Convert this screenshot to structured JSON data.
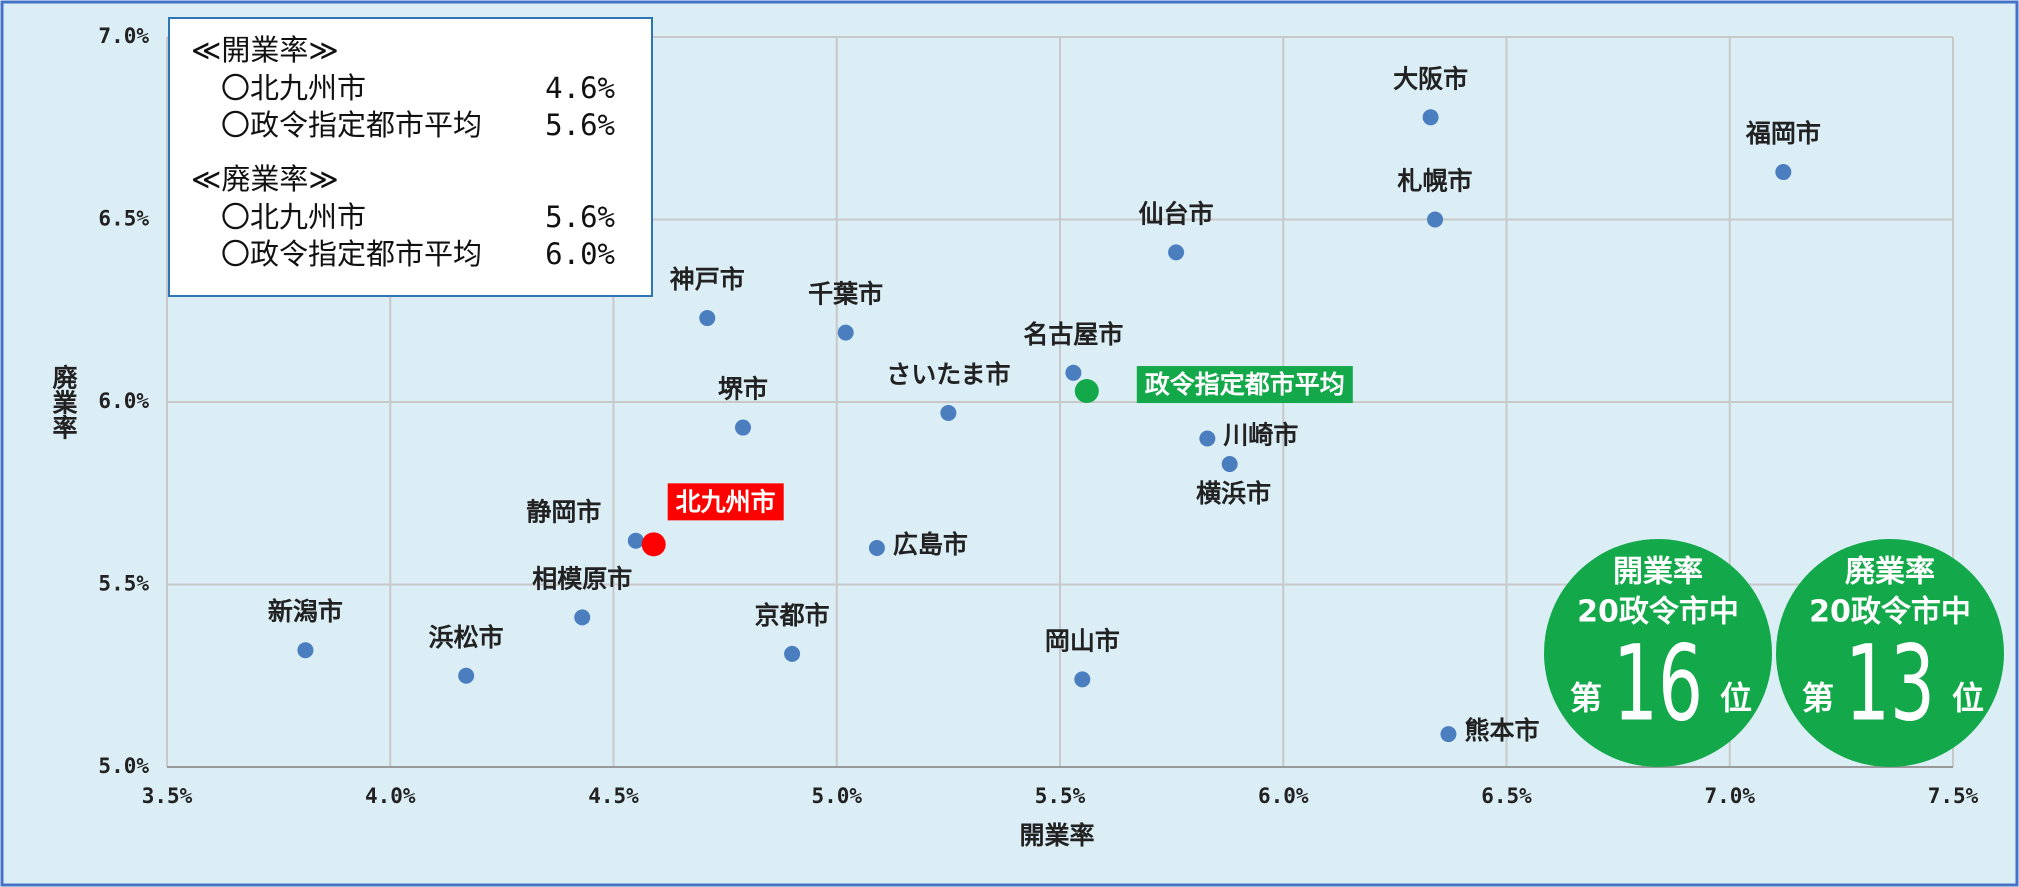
{
  "chart_data": {
    "type": "scatter",
    "x_label": "開業率",
    "y_label": "廃業率",
    "xlim": [
      3.5,
      7.5
    ],
    "ylim": [
      5.0,
      7.0
    ],
    "xticks": [
      {
        "value": 3.5,
        "label": "3.5%"
      },
      {
        "value": 4.0,
        "label": "4.0%"
      },
      {
        "value": 4.5,
        "label": "4.5%"
      },
      {
        "value": 5.0,
        "label": "5.0%"
      },
      {
        "value": 5.5,
        "label": "5.5%"
      },
      {
        "value": 6.0,
        "label": "6.0%"
      },
      {
        "value": 6.5,
        "label": "6.5%"
      },
      {
        "value": 7.0,
        "label": "7.0%"
      },
      {
        "value": 7.5,
        "label": "7.5%"
      }
    ],
    "yticks": [
      {
        "value": 5.0,
        "label": "5.0%"
      },
      {
        "value": 5.5,
        "label": "5.5%"
      },
      {
        "value": 6.0,
        "label": "6.0%"
      },
      {
        "value": 6.5,
        "label": "6.5%"
      },
      {
        "value": 7.0,
        "label": "7.0%"
      }
    ],
    "grid": true,
    "color": "#4a7ebf",
    "points": [
      {
        "label": "新潟市",
        "x": 3.81,
        "y": 5.32
      },
      {
        "label": "浜松市",
        "x": 4.17,
        "y": 5.25
      },
      {
        "label": "相模原市",
        "x": 4.43,
        "y": 5.41
      },
      {
        "label": "静岡市",
        "x": 4.55,
        "y": 5.62
      },
      {
        "label": "堺市",
        "x": 4.79,
        "y": 5.93
      },
      {
        "label": "神戸市",
        "x": 4.71,
        "y": 6.23
      },
      {
        "label": "千葉市",
        "x": 5.02,
        "y": 6.19
      },
      {
        "label": "京都市",
        "x": 4.9,
        "y": 5.31
      },
      {
        "label": "広島市",
        "x": 5.09,
        "y": 5.6
      },
      {
        "label": "さいたま市",
        "x": 5.25,
        "y": 5.97
      },
      {
        "label": "名古屋市",
        "x": 5.53,
        "y": 6.08
      },
      {
        "label": "岡山市",
        "x": 5.55,
        "y": 5.24
      },
      {
        "label": "仙台市",
        "x": 5.76,
        "y": 6.41
      },
      {
        "label": "川崎市",
        "x": 5.83,
        "y": 5.9
      },
      {
        "label": "横浜市",
        "x": 5.88,
        "y": 5.83
      },
      {
        "label": "大阪市",
        "x": 6.33,
        "y": 6.78
      },
      {
        "label": "札幌市",
        "x": 6.34,
        "y": 6.5
      },
      {
        "label": "熊本市",
        "x": 6.37,
        "y": 5.09
      },
      {
        "label": "福岡市",
        "x": 7.12,
        "y": 6.63
      }
    ],
    "highlights": [
      {
        "label": "北九州市",
        "x": 4.59,
        "y": 5.61,
        "color": "#ff0000"
      },
      {
        "label": "政令指定都市平均",
        "x": 5.56,
        "y": 6.03,
        "color": "#13a84a"
      }
    ],
    "info_box": {
      "sections": [
        {
          "heading": "≪開業率≫",
          "rows": [
            [
              "〇北九州市",
              "4.6%"
            ],
            [
              "〇政令指定都市平均",
              "5.6%"
            ]
          ]
        },
        {
          "heading": "≪廃業率≫",
          "rows": [
            [
              "〇北九州市",
              "5.6%"
            ],
            [
              "〇政令指定都市平均",
              "6.0%"
            ]
          ]
        }
      ]
    },
    "badges": [
      {
        "line1": "開業率",
        "line2": "20政令市中",
        "prefix": "第",
        "rank": "16",
        "suffix": "位"
      },
      {
        "line1": "廃業率",
        "line2": "20政令市中",
        "prefix": "第",
        "rank": "13",
        "suffix": "位"
      }
    ]
  }
}
